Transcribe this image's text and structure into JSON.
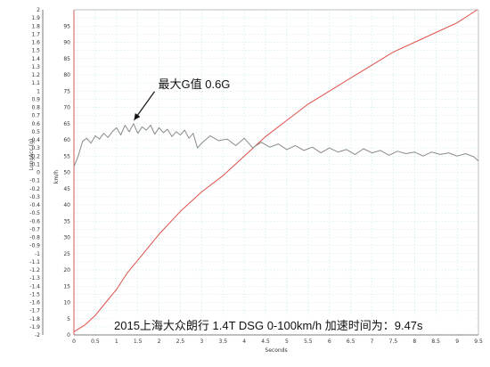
{
  "chart_data": {
    "type": "line",
    "title": "",
    "xlabel": "Seconds",
    "ylabel_left": "LongAcc (g)",
    "ylabel_right": "km/h",
    "xlim": [
      0,
      9.5
    ],
    "ylim_left": [
      -2,
      2
    ],
    "ylim_right": [
      0,
      100
    ],
    "x_ticks": [
      0,
      0.5,
      1,
      1.5,
      2,
      2.5,
      3,
      3.5,
      4,
      4.5,
      5,
      5.5,
      6,
      6.5,
      7,
      7.5,
      8,
      8.5,
      9,
      9.5
    ],
    "y_left_ticks": [
      -2,
      -1.9,
      -1.8,
      -1.7,
      -1.6,
      -1.5,
      -1.4,
      -1.3,
      -1.2,
      -1.1,
      -1,
      -0.9,
      -0.8,
      -0.7,
      -0.6,
      -0.5,
      -0.4,
      -0.3,
      -0.2,
      -0.1,
      0,
      0.1,
      0.2,
      0.3,
      0.4,
      0.5,
      0.6,
      0.7,
      0.8,
      0.9,
      1,
      1.1,
      1.2,
      1.3,
      1.4,
      1.5,
      1.6,
      1.7,
      1.8,
      1.9,
      2
    ],
    "y_right_ticks": [
      0,
      5,
      10,
      15,
      20,
      25,
      30,
      35,
      40,
      45,
      50,
      55,
      60,
      65,
      70,
      75,
      80,
      85,
      90,
      95
    ],
    "grid": true,
    "series": [
      {
        "name": "km/h",
        "axis": "right",
        "color": "#e0504a",
        "x": [
          0,
          0.25,
          0.5,
          0.75,
          1.0,
          1.25,
          1.5,
          2.0,
          2.5,
          3.0,
          3.5,
          4.0,
          4.5,
          5.0,
          5.5,
          6.0,
          6.5,
          7.0,
          7.5,
          8.0,
          8.5,
          9.0,
          9.47
        ],
        "values": [
          1,
          3,
          6,
          10,
          14,
          19,
          23,
          31,
          38,
          44,
          49,
          55,
          61,
          66,
          71,
          75,
          79,
          83,
          87,
          90,
          93,
          96,
          100
        ]
      },
      {
        "name": "LongAcc (g)",
        "axis": "left",
        "color": "#8a8a8a",
        "x": [
          0,
          0.1,
          0.2,
          0.3,
          0.4,
          0.5,
          0.6,
          0.7,
          0.8,
          0.9,
          1.0,
          1.1,
          1.2,
          1.3,
          1.4,
          1.5,
          1.6,
          1.7,
          1.8,
          1.9,
          2.0,
          2.1,
          2.2,
          2.3,
          2.4,
          2.5,
          2.6,
          2.7,
          2.8,
          2.9,
          3.0,
          3.2,
          3.4,
          3.6,
          3.8,
          4.0,
          4.2,
          4.4,
          4.6,
          4.8,
          5.0,
          5.2,
          5.4,
          5.6,
          5.8,
          6.0,
          6.2,
          6.4,
          6.6,
          6.8,
          7.0,
          7.2,
          7.4,
          7.6,
          7.8,
          8.0,
          8.2,
          8.4,
          8.6,
          8.8,
          9.0,
          9.2,
          9.4,
          9.5
        ],
        "values": [
          0.07,
          0.2,
          0.38,
          0.42,
          0.36,
          0.45,
          0.41,
          0.48,
          0.43,
          0.5,
          0.55,
          0.46,
          0.58,
          0.5,
          0.6,
          0.48,
          0.56,
          0.52,
          0.58,
          0.47,
          0.55,
          0.49,
          0.53,
          0.44,
          0.5,
          0.46,
          0.52,
          0.42,
          0.48,
          0.3,
          0.36,
          0.45,
          0.39,
          0.41,
          0.33,
          0.42,
          0.3,
          0.37,
          0.31,
          0.35,
          0.28,
          0.33,
          0.27,
          0.31,
          0.24,
          0.3,
          0.25,
          0.28,
          0.22,
          0.29,
          0.24,
          0.27,
          0.21,
          0.26,
          0.23,
          0.25,
          0.2,
          0.25,
          0.22,
          0.24,
          0.2,
          0.23,
          0.19,
          0.14
        ]
      }
    ],
    "annotation": {
      "text": "最大G值 0.6G",
      "target_x": 1.35,
      "target_y": 0.6
    },
    "caption": "2015上海大众朗行 1.4T DSG 0-100km/h 加速时间为：9.47s"
  }
}
